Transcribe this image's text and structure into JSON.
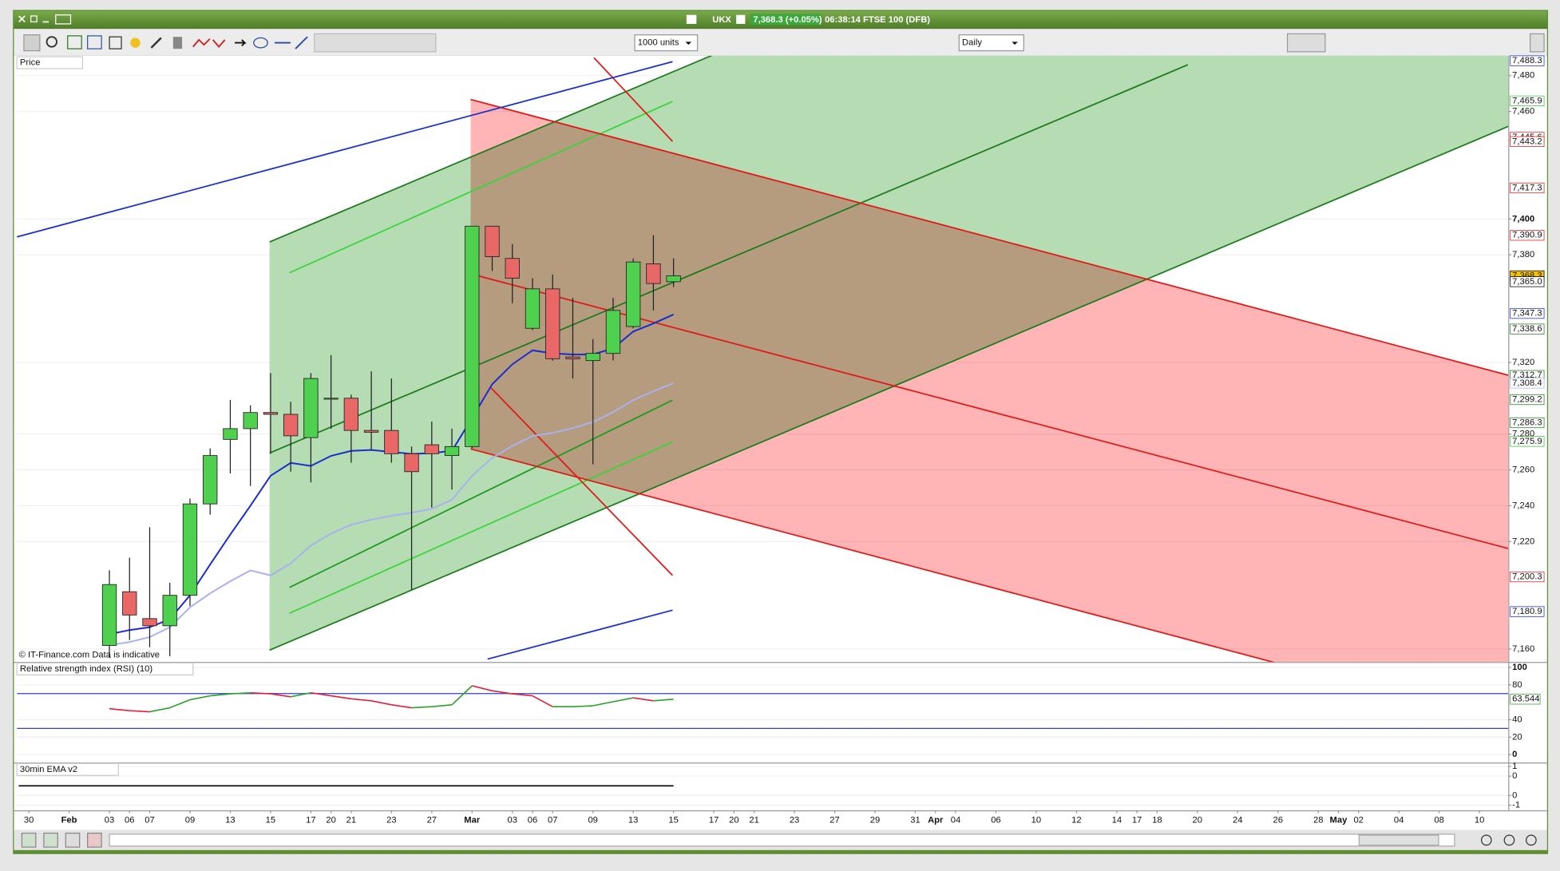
{
  "window": {
    "symbol": "UKX",
    "quote": "7,368.3 (+0.05%)",
    "info": "06:38:14 FTSE 100 (DFB)",
    "units": "1000 units",
    "period": "Daily"
  },
  "chart_data": [
    {
      "type": "candlestick",
      "title": "Price",
      "credit": "© IT-Finance.com Data is indicative",
      "up_color": "#4fd04f",
      "down_color": "#e86868",
      "x": [
        4,
        5,
        6,
        7,
        8,
        9,
        10,
        11,
        12,
        13,
        14,
        15,
        16,
        17,
        18,
        19,
        20,
        21,
        22,
        23,
        24,
        25,
        26,
        27,
        28,
        29,
        30,
        31,
        32
      ],
      "open": [
        7162,
        7192,
        7177,
        7173,
        7190,
        7241,
        7277,
        7283,
        7292,
        7291,
        7278,
        7300,
        7300,
        7282,
        7282,
        7269,
        7274,
        7268,
        7273,
        7396,
        7378,
        7339,
        7361,
        7323,
        7321,
        7325,
        7340,
        7375,
        7365
      ],
      "high": [
        7204,
        7211,
        7228,
        7197,
        7244,
        7272,
        7299,
        7296,
        7314,
        7298,
        7314,
        7324,
        7302,
        7315,
        7311,
        7273,
        7287,
        7283,
        7396,
        7396,
        7386,
        7367,
        7369,
        7356,
        7333,
        7356,
        7378,
        7391,
        7378
      ],
      "low": [
        7155,
        7165,
        7161,
        7156,
        7184,
        7235,
        7258,
        7251,
        7269,
        7259,
        7253,
        7283,
        7264,
        7271,
        7264,
        7193,
        7239,
        7249,
        7272,
        7371,
        7353,
        7338,
        7321,
        7311,
        7263,
        7321,
        7339,
        7349,
        7362
      ],
      "close": [
        7196,
        7179,
        7173,
        7190,
        7241,
        7268,
        7283,
        7292,
        7291,
        7279,
        7311,
        7300,
        7282,
        7281,
        7269,
        7259,
        7269,
        7273,
        7396,
        7379,
        7367,
        7361,
        7322,
        7322,
        7325,
        7349,
        7376,
        7364,
        7368.3
      ],
      "series": [
        {
          "color": "#1a2ecc",
          "values": [
            7168.3,
            7170.6,
            7172.2,
            7176.7,
            7190,
            7207.2,
            7223.9,
            7240,
            7256.7,
            7263.9,
            7262.2,
            7267.8,
            7270.6,
            7271.1,
            7270,
            7268.9,
            7269.4,
            7270.6,
            7288.9,
            7307.8,
            7318.9,
            7326.7,
            7325,
            7324.4,
            7324.4,
            7327.8,
            7337.2,
            7341.7,
            7346.7
          ]
        },
        {
          "color": "#a9b2ee",
          "values": [
            7162.2,
            7163.9,
            7166.7,
            7172.2,
            7183.3,
            7191.1,
            7197.8,
            7203.9,
            7201.1,
            7207.8,
            7217.8,
            7224.4,
            7229.4,
            7232.2,
            7234.4,
            7236.1,
            7238.3,
            7243.3,
            7256.7,
            7266.7,
            7273.3,
            7278.9,
            7280.6,
            7283.3,
            7286.7,
            7292.2,
            7298.9,
            7303.9,
            7308.4
          ]
        }
      ],
      "overlays": [
        {
          "fill": "#b5dcb2",
          "points": [
            [
              11.95,
              7387.2
            ],
            [
              73.43,
              7678.7
            ],
            [
              73.43,
              7451.7
            ],
            [
              11.95,
              7159.4
            ]
          ]
        },
        {
          "fill": "#ffb5b5",
          "blend": "multiply",
          "points": [
            [
              21.93,
              7466.7
            ],
            [
              73.43,
              7312.8
            ],
            [
              73.43,
              7117.8
            ],
            [
              21.93,
              7271.7
            ]
          ]
        },
        {
          "color": "#1c7a1c",
          "points": [
            [
              11.95,
              7387.2
            ],
            [
              73.43,
              7678.7
            ]
          ]
        },
        {
          "color": "#1c7a1c",
          "points": [
            [
              11.95,
              7269.4
            ],
            [
              57.53,
              7486.1
            ]
          ]
        },
        {
          "color": "#1c7a1c",
          "points": [
            [
              11.95,
              7159.4
            ],
            [
              73.43,
              7451.7
            ]
          ]
        },
        {
          "color": "#3ad43a",
          "points": [
            [
              12.94,
              7370
            ],
            [
              31.95,
              7465.6
            ]
          ]
        },
        {
          "color": "#3ad43a",
          "points": [
            [
              12.94,
              7180
            ],
            [
              31.95,
              7275.6
            ]
          ]
        },
        {
          "color": "#1c9a1c",
          "points": [
            [
              12.94,
              7194.4
            ],
            [
              31.95,
              7298.9
            ]
          ]
        },
        {
          "color": "#e01818",
          "points": [
            [
              21.93,
              7466.7
            ],
            [
              73.43,
              7312.8
            ]
          ]
        },
        {
          "color": "#e01818",
          "points": [
            [
              21.93,
              7369.4
            ],
            [
              73.43,
              7216.1
            ]
          ]
        },
        {
          "color": "#e01818",
          "points": [
            [
              21.93,
              7271.7
            ],
            [
              73.43,
              7117.8
            ]
          ]
        },
        {
          "color": "#e01818",
          "points": [
            [
              28.05,
              7490
            ],
            [
              31.95,
              7443.3
            ]
          ]
        },
        {
          "color": "#e01818",
          "points": [
            [
              22.91,
              7306.1
            ],
            [
              31.95,
              7201.1
            ]
          ]
        },
        {
          "color": "#1a2ecc",
          "points": [
            [
              -0.59,
              7390
            ],
            [
              31.95,
              7487.8
            ]
          ]
        },
        {
          "color": "#1a2ecc",
          "points": [
            [
              22.77,
              7154.4
            ],
            [
              31.95,
              7181.7
            ]
          ]
        }
      ],
      "xlim": [
        -0.59,
        73.43
      ],
      "ylim": [
        7152.8,
        7491.1
      ],
      "yticks": [
        {
          "value": 7160,
          "label": "7,160"
        },
        {
          "value": 7220,
          "label": "7,220"
        },
        {
          "value": 7240,
          "label": "7,240"
        },
        {
          "value": 7260,
          "label": "7,260"
        },
        {
          "value": 7280,
          "label": "7,280"
        },
        {
          "value": 7320,
          "label": "7,320"
        },
        {
          "value": 7380,
          "label": "7,380"
        },
        {
          "value": 7400,
          "label": "7,400"
        },
        {
          "value": 7460,
          "label": "7,460"
        },
        {
          "value": 7480,
          "label": "7,480"
        }
      ],
      "price_flags": [
        {
          "value": 7488.3,
          "label": "7,488.3",
          "color": "#1a2ecc"
        },
        {
          "value": 7465.9,
          "label": "7,465.9",
          "color": "#3ac23a"
        },
        {
          "value": 7445.6,
          "label": "7,445.6",
          "color": "#e01818"
        },
        {
          "value": 7443.2,
          "label": "7,443.2",
          "color": "#e01818"
        },
        {
          "value": 7417.3,
          "label": "7,417.3",
          "color": "#e01818"
        },
        {
          "value": 7390.9,
          "label": "7,390.9",
          "color": "#e01818"
        },
        {
          "value": 7368.3,
          "label": "7,368.3",
          "color": "#000000",
          "background": "#f5c400"
        },
        {
          "value": 7365.0,
          "label": "7,365.0",
          "color": "#000000"
        },
        {
          "value": 7347.3,
          "label": "7,347.3",
          "color": "#1a2ecc"
        },
        {
          "value": 7338.6,
          "label": "7,338.6",
          "color": "#1c7a1c"
        },
        {
          "value": 7312.7,
          "label": "7,312.7",
          "color": "#1c7a1c"
        },
        {
          "value": 7308.4,
          "label": "7,308.4",
          "color": "#a9b2ee"
        },
        {
          "value": 7299.2,
          "label": "7,299.2",
          "color": "#1c7a1c"
        },
        {
          "value": 7286.3,
          "label": "7,286.3",
          "color": "#1c7a1c"
        },
        {
          "value": 7275.9,
          "label": "7,275.9",
          "color": "#3ac23a"
        },
        {
          "value": 7200.3,
          "label": "7,200.3",
          "color": "#e01818"
        },
        {
          "value": 7180.9,
          "label": "7,180.9",
          "color": "#1a2ecc"
        }
      ],
      "xticks": [
        {
          "value": 0,
          "label": "30"
        },
        {
          "value": 2,
          "label": "Feb"
        },
        {
          "value": 4,
          "label": "03"
        },
        {
          "value": 5,
          "label": "06"
        },
        {
          "value": 6,
          "label": "07"
        },
        {
          "value": 8,
          "label": "09"
        },
        {
          "value": 10,
          "label": "13"
        },
        {
          "value": 12,
          "label": "15"
        },
        {
          "value": 14,
          "label": "17"
        },
        {
          "value": 15,
          "label": "20"
        },
        {
          "value": 16,
          "label": "21"
        },
        {
          "value": 18,
          "label": "23"
        },
        {
          "value": 20,
          "label": "27"
        },
        {
          "value": 22,
          "label": "Mar"
        },
        {
          "value": 24,
          "label": "03"
        },
        {
          "value": 25,
          "label": "06"
        },
        {
          "value": 26,
          "label": "07"
        },
        {
          "value": 28,
          "label": "09"
        },
        {
          "value": 30,
          "label": "13"
        },
        {
          "value": 32,
          "label": "15"
        },
        {
          "value": 34,
          "label": "17"
        },
        {
          "value": 35,
          "label": "20"
        },
        {
          "value": 36,
          "label": "21"
        },
        {
          "value": 38,
          "label": "23"
        },
        {
          "value": 40,
          "label": "27"
        },
        {
          "value": 42,
          "label": "29"
        },
        {
          "value": 44,
          "label": "31"
        },
        {
          "value": 45,
          "label": "Apr"
        },
        {
          "value": 46,
          "label": "04"
        },
        {
          "value": 48,
          "label": "06"
        },
        {
          "value": 50,
          "label": "10"
        },
        {
          "value": 52,
          "label": "12"
        },
        {
          "value": 54,
          "label": "14"
        },
        {
          "value": 55,
          "label": "17"
        },
        {
          "value": 56,
          "label": "18"
        },
        {
          "value": 58,
          "label": "20"
        },
        {
          "value": 60,
          "label": "24"
        },
        {
          "value": 62,
          "label": "26"
        },
        {
          "value": 64,
          "label": "28"
        },
        {
          "value": 65,
          "label": "May"
        },
        {
          "value": 66,
          "label": "02"
        },
        {
          "value": 68,
          "label": "04"
        },
        {
          "value": 70,
          "label": "08"
        },
        {
          "value": 72,
          "label": "10"
        }
      ]
    },
    {
      "type": "line",
      "title": "Relative strength index (RSI) (10)",
      "up_color": "#2ca02c",
      "down_color": "#e0203a",
      "x": [
        4,
        5,
        6,
        7,
        8,
        9,
        10,
        11,
        12,
        13,
        14,
        15,
        16,
        17,
        18,
        19,
        20,
        21,
        22,
        23,
        24,
        25,
        26,
        27,
        28,
        29,
        30,
        31,
        32
      ],
      "values": [
        52.6,
        50.3,
        49.1,
        53.7,
        62.9,
        67.4,
        69.7,
        70.9,
        69.7,
        66.3,
        70.9,
        67.4,
        64,
        61.7,
        57.1,
        53.7,
        54.9,
        57.1,
        78.9,
        73.1,
        69.7,
        67.4,
        54.9,
        54.9,
        56,
        60.6,
        65.1,
        61.7,
        63.544
      ],
      "levels": [
        30,
        70
      ],
      "level_color": "#3040c0",
      "flag": {
        "value": 63.544,
        "label": "63.544",
        "color": "#2ca02c"
      },
      "ylim": [
        -9.1,
        105.1
      ],
      "yticks": [
        0,
        20,
        40,
        80,
        100
      ]
    },
    {
      "type": "line",
      "title": "30min EMA v2",
      "color": "#000000",
      "x": [
        -0.5,
        32
      ],
      "values": [
        0,
        0
      ],
      "ylim": [
        -1.26,
        1.15
      ],
      "yticks": [
        1,
        {
          "value": 0.5,
          "label": "0"
        },
        {
          "value": -0.5,
          "label": "0"
        },
        -1
      ]
    }
  ]
}
